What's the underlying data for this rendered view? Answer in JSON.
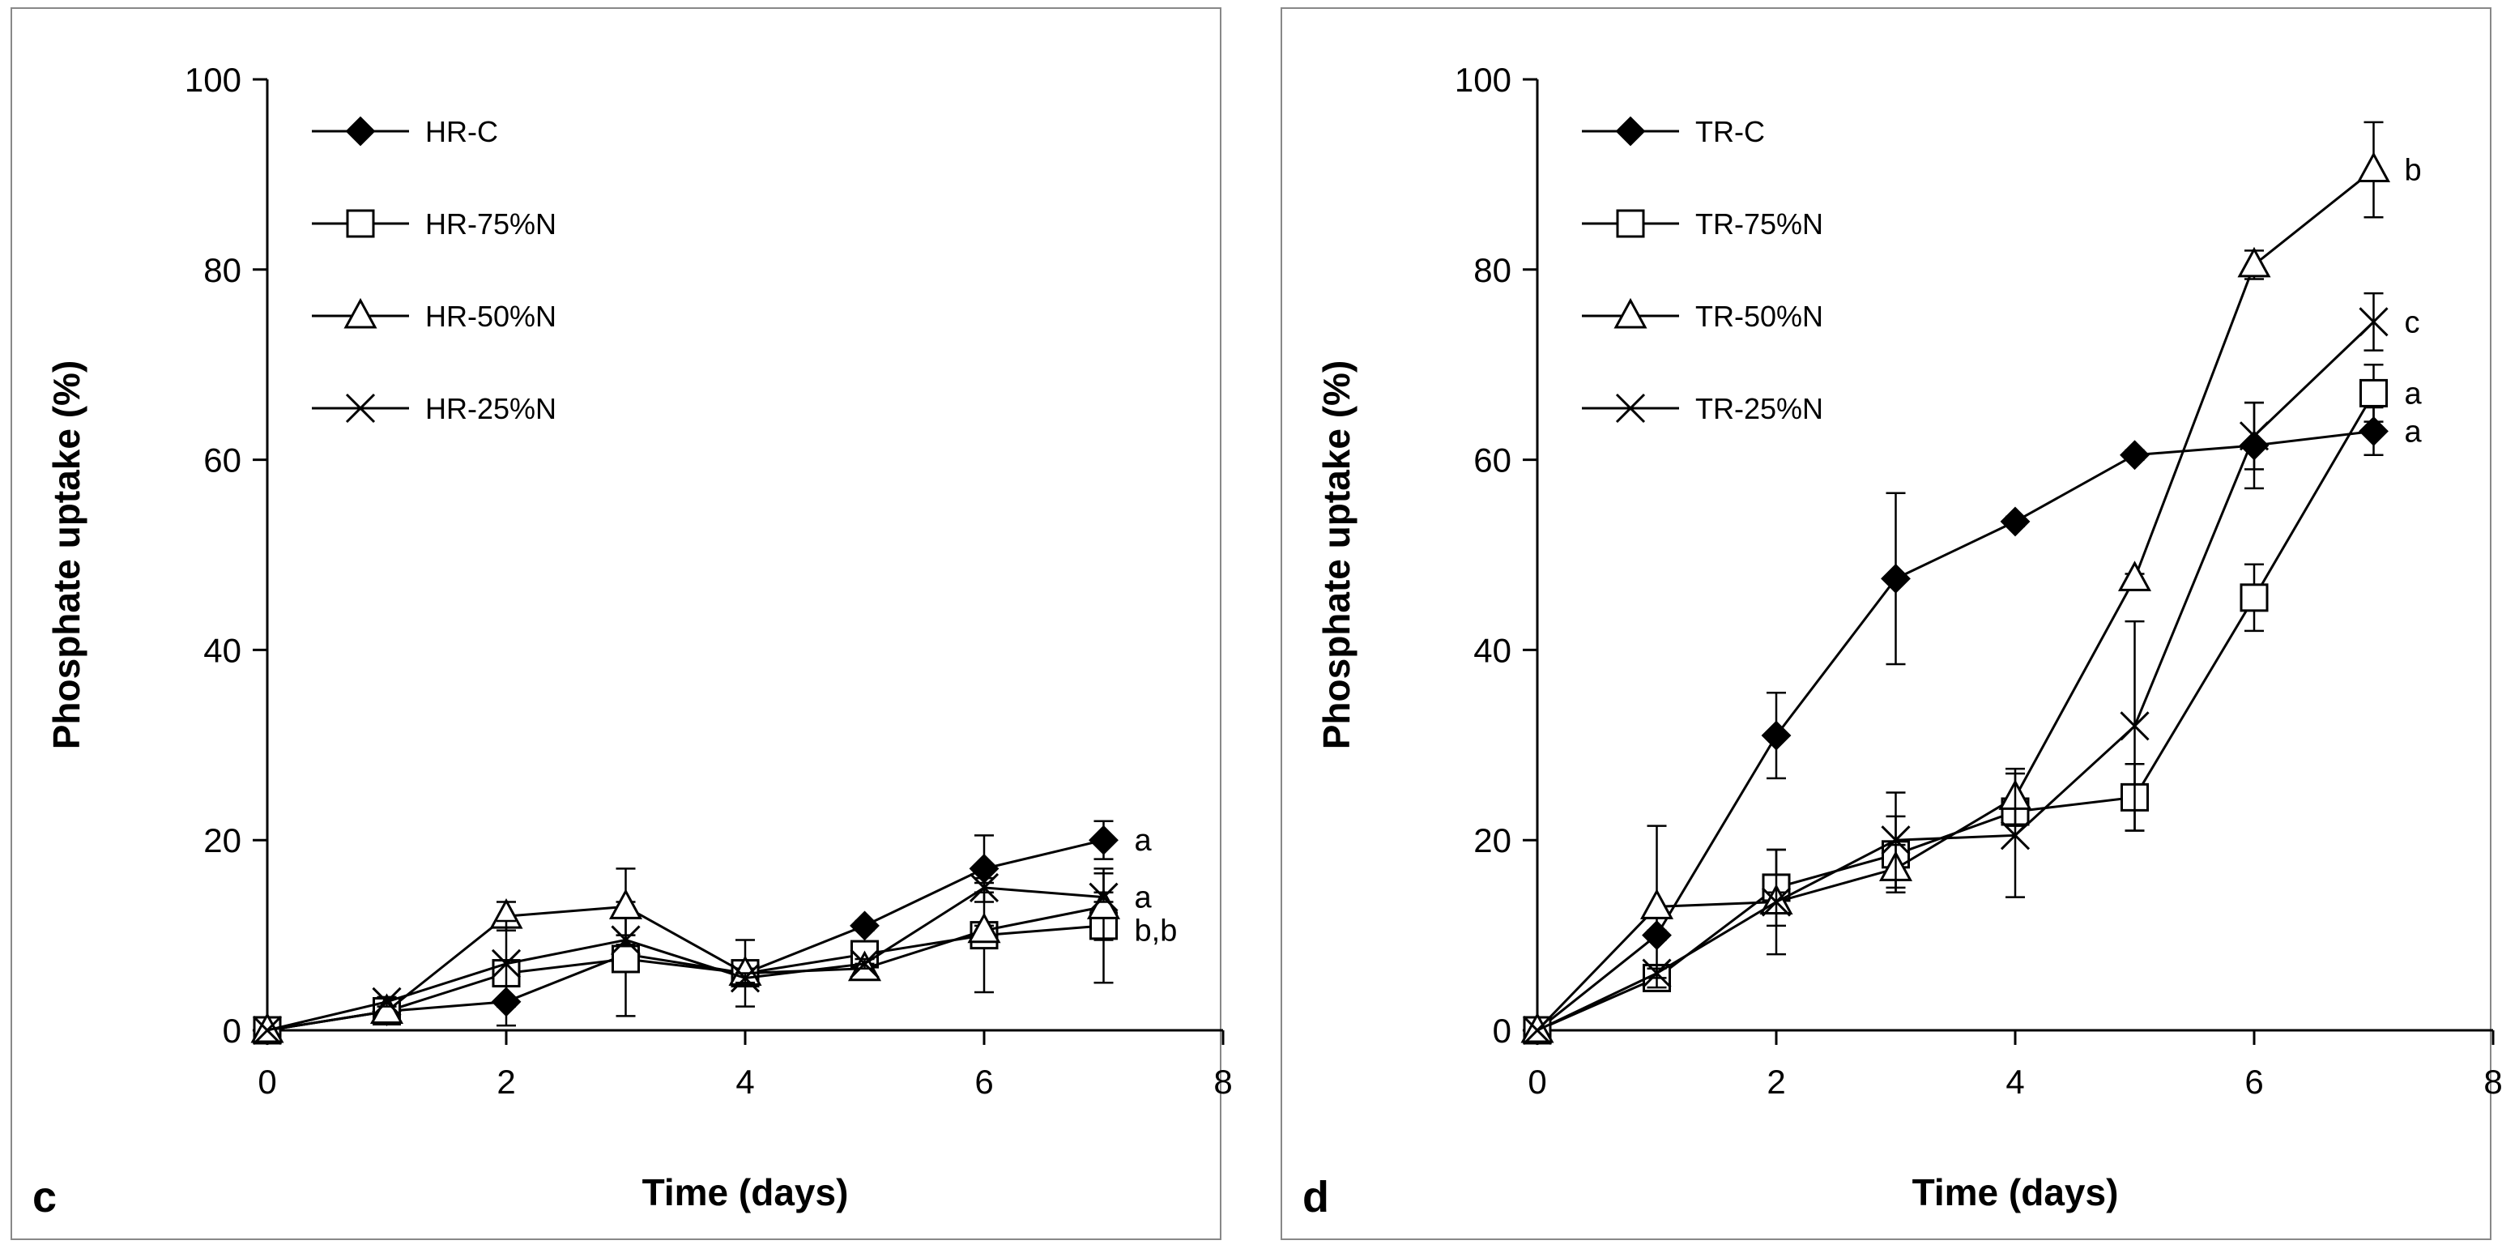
{
  "chart_data": [
    {
      "type": "line",
      "panel_label": "c",
      "xlabel": "Time (days)",
      "ylabel": "Phosphate uptake (%)",
      "xlim": [
        0,
        8
      ],
      "ylim": [
        0,
        100
      ],
      "xticks": [
        0,
        2,
        4,
        6,
        8
      ],
      "yticks": [
        0,
        20,
        40,
        60,
        80,
        100
      ],
      "grid": false,
      "legend_position": "top-left",
      "x": [
        0,
        1,
        2,
        3,
        4,
        5,
        6,
        7
      ],
      "series": [
        {
          "name": "HR-C",
          "marker": "diamond-filled",
          "values": [
            0,
            2,
            3,
            8,
            6,
            11,
            17,
            20
          ],
          "errors": [
            0,
            0.5,
            2.5,
            0,
            0.5,
            0.5,
            3.5,
            2
          ]
        },
        {
          "name": "HR-75%N",
          "marker": "square-open",
          "values": [
            0,
            2,
            6,
            7.5,
            6,
            8,
            10,
            11
          ],
          "errors": [
            0,
            0.5,
            0.5,
            6,
            3.5,
            0.5,
            6,
            6
          ]
        },
        {
          "name": "HR-50%N",
          "marker": "triangle-open",
          "values": [
            0,
            2,
            12,
            13,
            6,
            6.5,
            10.5,
            13
          ],
          "errors": [
            0,
            0.5,
            1.5,
            4,
            0.5,
            0.5,
            0.5,
            3.5
          ]
        },
        {
          "name": "HR-25%N",
          "marker": "cross",
          "values": [
            0,
            3,
            7,
            9.5,
            5.5,
            7,
            15,
            14
          ],
          "errors": [
            0,
            0.5,
            4.5,
            0.5,
            0.5,
            0.5,
            0.5,
            0.5
          ]
        }
      ],
      "annotations": [
        {
          "text": "a",
          "x": 7,
          "y": 20
        },
        {
          "text": "a",
          "x": 7,
          "y": 14
        },
        {
          "text": "b,b",
          "x": 7,
          "y": 10.5
        }
      ]
    },
    {
      "type": "line",
      "panel_label": "d",
      "xlabel": "Time (days)",
      "ylabel": "Phosphate uptake (%)",
      "xlim": [
        0,
        8
      ],
      "ylim": [
        0,
        100
      ],
      "xticks": [
        0,
        2,
        4,
        6,
        8
      ],
      "yticks": [
        0,
        20,
        40,
        60,
        80,
        100
      ],
      "grid": false,
      "legend_position": "top-left",
      "x": [
        0,
        1,
        2,
        3,
        4,
        5,
        6,
        7
      ],
      "series": [
        {
          "name": "TR-C",
          "marker": "diamond-filled",
          "values": [
            0,
            10,
            31,
            47.5,
            53.5,
            60.5,
            61.5,
            63
          ],
          "errors": [
            0,
            0.5,
            4.5,
            9,
            0.5,
            0.5,
            4.5,
            2.5
          ]
        },
        {
          "name": "TR-75%N",
          "marker": "square-open",
          "values": [
            0,
            5.5,
            15,
            18.5,
            23,
            24.5,
            45.5,
            67
          ],
          "errors": [
            0,
            1,
            4,
            4,
            1,
            3.5,
            3.5,
            3
          ]
        },
        {
          "name": "TR-50%N",
          "marker": "triangle-open",
          "values": [
            0,
            13,
            13.5,
            17,
            24.5,
            47.5,
            80.5,
            90.5
          ],
          "errors": [
            0,
            8.5,
            1,
            2.5,
            3,
            0.5,
            1.5,
            5
          ]
        },
        {
          "name": "TR-25%N",
          "marker": "cross",
          "values": [
            0,
            6,
            13.5,
            20,
            20.5,
            32,
            62.5,
            74.5
          ],
          "errors": [
            0,
            0.5,
            5.5,
            5,
            6.5,
            11,
            3.5,
            3
          ]
        }
      ],
      "annotations": [
        {
          "text": "b",
          "x": 7,
          "y": 90.5
        },
        {
          "text": "c",
          "x": 7,
          "y": 74.5
        },
        {
          "text": "a",
          "x": 7,
          "y": 67
        },
        {
          "text": "a",
          "x": 7,
          "y": 63
        }
      ]
    }
  ]
}
